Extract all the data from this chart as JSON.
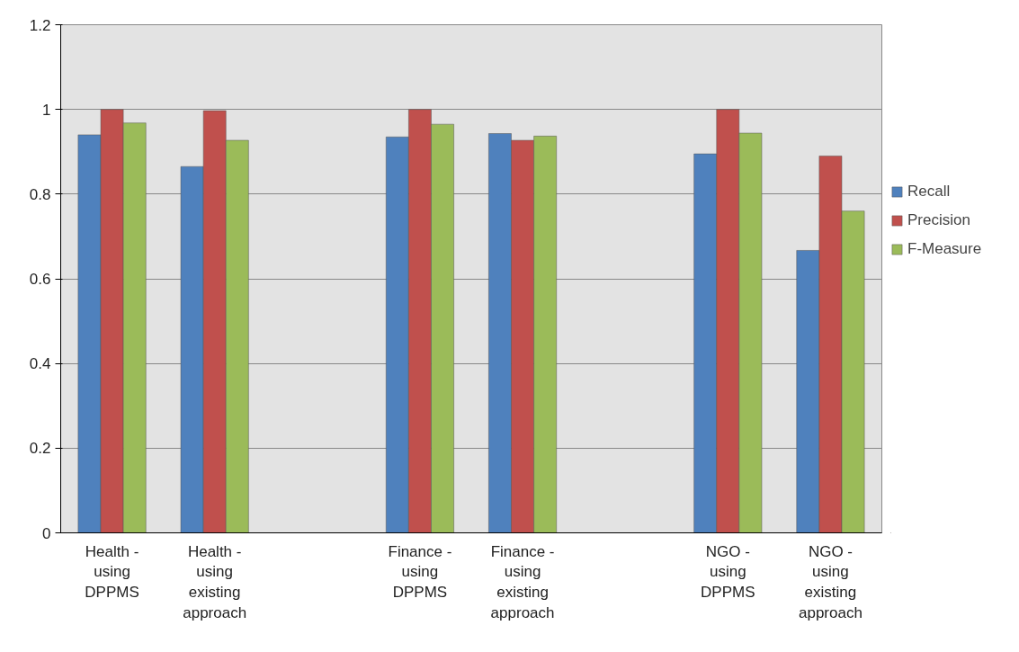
{
  "chart_data": {
    "type": "bar",
    "categories": [
      "Health -\nusing\nDPPMS",
      "Health -\nusing\nexisting\napproach",
      null,
      "Finance -\nusing\nDPPMS",
      "Finance -\nusing\nexisting\napproach",
      null,
      "NGO -\nusing\nDPPMS",
      "NGO -\nusing\nexisting\napproach"
    ],
    "series": [
      {
        "name": "Recall",
        "color": "#4f81bd",
        "values": [
          0.94,
          0.865,
          null,
          0.935,
          0.943,
          null,
          0.895,
          0.667
        ]
      },
      {
        "name": "Precision",
        "color": "#c0504d",
        "values": [
          1.0,
          0.997,
          null,
          1.0,
          0.927,
          null,
          1.0,
          0.89
        ]
      },
      {
        "name": "F-Measure",
        "color": "#9bbb59",
        "values": [
          0.968,
          0.927,
          null,
          0.965,
          0.937,
          null,
          0.944,
          0.76
        ]
      }
    ],
    "ylim": [
      0,
      1.2
    ],
    "yticks": [
      0,
      0.2,
      0.4,
      0.6,
      0.8,
      1,
      1.2
    ],
    "grid": "y",
    "legend": "right"
  }
}
